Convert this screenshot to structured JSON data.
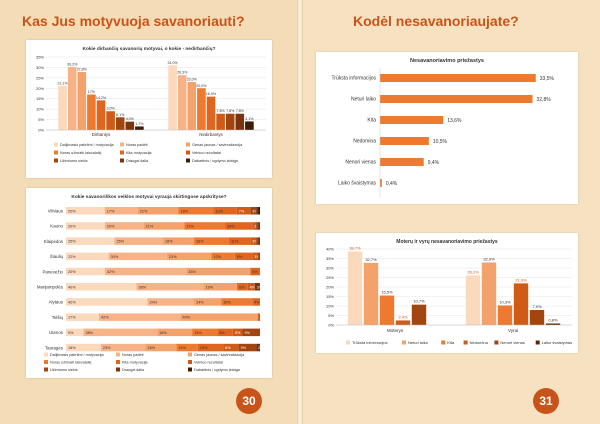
{
  "pages": {
    "left": {
      "title": "Kas Jus motyvuoja savanoriauti?",
      "number": "30"
    },
    "right": {
      "title": "Kodėl nesavanoriaujate?",
      "number": "31"
    }
  },
  "colors": {
    "accent": "#c8541a",
    "palette": [
      "#fbd9bd",
      "#f7b387",
      "#f4a26b",
      "#ed7a30",
      "#cf5b16",
      "#a3450e",
      "#5c2a0a"
    ]
  },
  "chart_data": [
    {
      "id": "motivation-groups",
      "type": "bar",
      "title": "Kokie dirbančių savanorių motyvai, o kokie - nedirbančių?",
      "yticks": [
        "0%",
        "5%",
        "10%",
        "15%",
        "20%",
        "25%",
        "30%",
        "35%"
      ],
      "ylim": [
        0,
        35
      ],
      "groups": [
        "Dirbantys",
        "Nedirbantys"
      ],
      "series": [
        {
          "name": "Dalijimasis patirtimi / motyvacija",
          "values": [
            21.1,
            31.0
          ],
          "labels": [
            "21,1%",
            "31,0%"
          ]
        },
        {
          "name": "Noras padėti",
          "values": [
            30.2,
            26.3
          ],
          "labels": [
            "30,2%",
            "26,3%"
          ]
        },
        {
          "name": "Genas jaunas / savirealizacija",
          "values": [
            27.8,
            23.0
          ],
          "labels": [
            "27,8%",
            "23,0%"
          ]
        },
        {
          "name": "Noras užimaiti laisvalaikį",
          "values": [
            17.0,
            20.0
          ],
          "labels": [
            "17%",
            "20,0%"
          ]
        },
        {
          "name": "Kita motyvacija",
          "values": [
            14.2,
            16.0
          ],
          "labels": [
            "14,2%",
            "16,0%"
          ]
        },
        {
          "name": "Velniuo rezultatai",
          "values": [
            9.0,
            7.8
          ],
          "labels": [
            "9,0%",
            "7,8%"
          ]
        },
        {
          "name": "Užimtumo siekis",
          "values": [
            6.1,
            7.8
          ],
          "labels": [
            "6,1%",
            "7,8%"
          ]
        },
        {
          "name": "Draugai šalia",
          "values": [
            4.0,
            7.8
          ],
          "labels": [
            "4,0%",
            "7,8%"
          ]
        },
        {
          "name": "Dabartinis / ugdymo įstaiga",
          "values": [
            1.7,
            4.1
          ],
          "labels": [
            "1,7%",
            "4,1%"
          ]
        }
      ],
      "legend": [
        "Dalijimasis patirtimi / motyvacija",
        "Noras padėti",
        "Genas jaunas / savirealizacija",
        "Noras užimaiti laisvalaikį",
        "Kita motyvacija",
        "Velniuo rezultatai",
        "Užimtumo siekis",
        "Draugai šalia",
        "Dabartinis / ugdymo įstaiga"
      ]
    },
    {
      "id": "motivation-cities",
      "type": "bar",
      "stacked": true,
      "orientation": "horizontal",
      "title": "Kokie savanoriškos veiklos motyvai vyrauja skirtingose apskrityse?",
      "categories": [
        "Vilniaus",
        "Kauno",
        "Klaipėdos",
        "Šiaulių",
        "Panevėžio",
        "Marijampolės",
        "Alytaus",
        "Telšių",
        "Utenos",
        "Tauragės"
      ],
      "series": [
        {
          "name": "Dalijimasis patirtimi / motyvacija",
          "values": [
            20,
            20,
            25,
            22,
            20,
            40,
            42,
            17,
            9,
            18
          ]
        },
        {
          "name": "Noras padėti",
          "values": [
            17,
            20,
            25,
            30,
            42,
            38,
            24,
            42,
            38,
            23
          ]
        },
        {
          "name": "Genas jaunas / savirealizacija",
          "values": [
            21,
            21,
            16,
            23,
            33,
            19,
            14,
            40,
            18,
            16
          ]
        },
        {
          "name": "Noras užimaiti laisvalaikį",
          "values": [
            18,
            21,
            18,
            12,
            0,
            0,
            16,
            0,
            13,
            11
          ]
        },
        {
          "name": "Kita motyvacija",
          "values": [
            12,
            14,
            11,
            9,
            5,
            6,
            4,
            0,
            8,
            13
          ]
        },
        {
          "name": "Velniuo rezultatai",
          "values": [
            7,
            2,
            3,
            3,
            0,
            4,
            0,
            1,
            5,
            8
          ]
        },
        {
          "name": "Užimtumo siekis",
          "values": [
            3,
            1,
            1,
            1,
            0,
            0,
            0,
            0,
            9,
            9
          ]
        },
        {
          "name": "Draugai šalia",
          "values": [
            1,
            1,
            1,
            0,
            0,
            3,
            0,
            0,
            0,
            2
          ]
        },
        {
          "name": "Dabartinis / ugdymo įstaiga",
          "values": [
            1,
            0,
            0,
            0,
            0,
            0,
            0,
            0,
            0,
            0
          ]
        }
      ],
      "visible_labels": [
        [
          "20%",
          "17%",
          "21%",
          "18%",
          "12%",
          "7%",
          "3%",
          "1%",
          "1%"
        ],
        [
          "20%",
          "20%",
          "21%",
          "21%",
          "14%",
          "2%",
          "1%",
          "1%"
        ],
        [
          "25%",
          "25%",
          "16%",
          "18%",
          "11%",
          "3%"
        ],
        [
          "22%",
          "30%",
          "23%",
          "12%",
          "9%",
          "3%"
        ],
        [
          "20%",
          "42%",
          "33%",
          "5%"
        ],
        [
          "40%",
          "38%",
          "19%",
          "6%",
          "4%",
          "3%"
        ],
        [
          "42%",
          "24%",
          "14%",
          "16%",
          "4%"
        ],
        [
          "17%",
          "42%",
          "40%"
        ],
        [
          "9%",
          "38%",
          "18%",
          "13%",
          "8%",
          "5%",
          "9%"
        ],
        [
          "18%",
          "23%",
          "16%",
          "11%",
          "13%",
          "8%",
          "9%",
          "2%"
        ]
      ],
      "legend": [
        "Dalijimasis patirtimi / motyvacija",
        "Noras padėti",
        "Genas jaunas / savirealizacija",
        "Noras užimaiti laisvalaikį",
        "Kita motyvacija",
        "Velniuo rezultatai",
        "Užimtumo siekis",
        "Draugai šalia",
        "Dabartinis / ugdymo įstaiga"
      ]
    },
    {
      "id": "reasons",
      "type": "bar",
      "orientation": "horizontal",
      "title": "Nesavanoriavimo priežastys",
      "categories": [
        "Trūksta informacijos",
        "Neturi laiko",
        "Kita",
        "Nedomina",
        "Nenori vienas",
        "Laiko švaistymas"
      ],
      "values": [
        33.5,
        32.8,
        13.6,
        10.5,
        9.4,
        0.4
      ],
      "labels": [
        "33,5%",
        "32,8%",
        "13,6%",
        "10,5%",
        "9,4%",
        "0,4%"
      ],
      "xlim": [
        0,
        40
      ]
    },
    {
      "id": "reasons-gender",
      "type": "bar",
      "title": "Moterų ir vyrų nesavanoriavimo priežastys",
      "yticks": [
        "0%",
        "5%",
        "10%",
        "15%",
        "20%",
        "25%",
        "30%",
        "35%",
        "40%"
      ],
      "ylim": [
        0,
        40
      ],
      "groups": [
        "Moterys",
        "Vyrai"
      ],
      "series": [
        {
          "name": "Trūksta informacijos",
          "values": [
            38.7,
            26.1
          ],
          "labels": [
            "38,7%",
            "26,1%"
          ]
        },
        {
          "name": "Neturi laiko",
          "values": [
            32.7,
            32.9
          ],
          "labels": [
            "32,7%",
            "32,9%"
          ]
        },
        {
          "name": "Kita",
          "values": [
            15.5,
            10.3
          ],
          "labels": [
            "15,5%",
            "10,3%"
          ]
        },
        {
          "name": "Nedomina",
          "values": [
            2.4,
            21.9
          ],
          "labels": [
            "2,4%",
            "21,9%"
          ]
        },
        {
          "name": "Nenori vienas",
          "values": [
            10.7,
            7.9
          ],
          "labels": [
            "10,7%",
            "7,9%"
          ]
        },
        {
          "name": "Laiko švaistymas",
          "values": [
            0,
            0.8
          ],
          "labels": [
            "",
            "0,8%"
          ]
        }
      ],
      "legend": [
        "Trūksta informacijos",
        "Neturi laiko",
        "Kita",
        "Nedomina",
        "Nenori vienas",
        "Laiko švaistymas"
      ]
    }
  ]
}
